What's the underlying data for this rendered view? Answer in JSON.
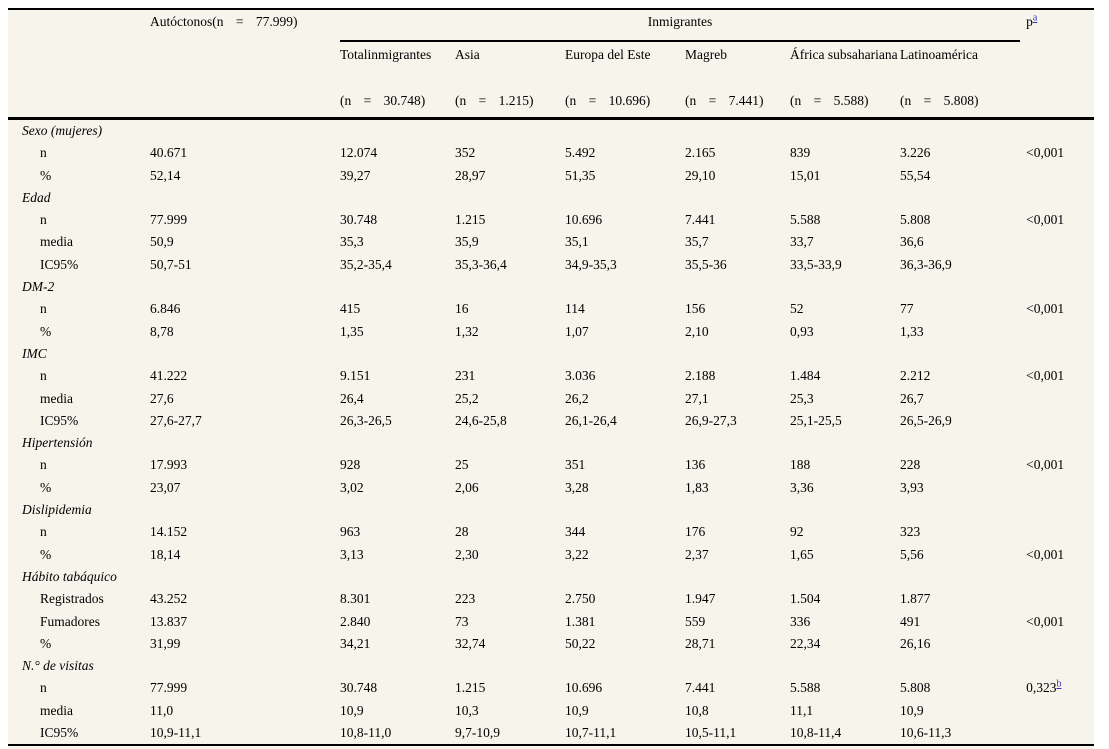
{
  "header": {
    "autoctonos_label": "Autóctonos(n = 77.999)",
    "inmigrantes_label": "Inmigrantes",
    "p_label": "p",
    "p_footnote": "a",
    "groups": [
      {
        "name": "Totalinmigrantes",
        "n": "(n = 30.748)"
      },
      {
        "name": "Asia",
        "n": "(n = 1.215)"
      },
      {
        "name": "Europa del Este",
        "n": "(n = 10.696)"
      },
      {
        "name": "Magreb",
        "n": "(n = 7.441)"
      },
      {
        "name": "África subsahariana",
        "n": "(n = 5.588)"
      },
      {
        "name": "Latinoamérica",
        "n": "(n = 5.808)"
      }
    ]
  },
  "sections": [
    {
      "label": "Sexo (mujeres)",
      "rows": [
        {
          "label": "n",
          "values": [
            "40.671",
            "12.074",
            "352",
            "5.492",
            "2.165",
            "839",
            "3.226"
          ],
          "p": "<0,001",
          "p_sup": ""
        },
        {
          "label": "%",
          "values": [
            "52,14",
            "39,27",
            "28,97",
            "51,35",
            "29,10",
            "15,01",
            "55,54"
          ],
          "p": "",
          "p_sup": ""
        }
      ]
    },
    {
      "label": "Edad",
      "rows": [
        {
          "label": "n",
          "values": [
            "77.999",
            "30.748",
            "1.215",
            "10.696",
            "7.441",
            "5.588",
            "5.808"
          ],
          "p": "<0,001",
          "p_sup": ""
        },
        {
          "label": "media",
          "values": [
            "50,9",
            "35,3",
            "35,9",
            "35,1",
            "35,7",
            "33,7",
            "36,6"
          ],
          "p": "",
          "p_sup": ""
        },
        {
          "label": "IC95%",
          "values": [
            "50,7-51",
            "35,2-35,4",
            "35,3-36,4",
            "34,9-35,3",
            "35,5-36",
            "33,5-33,9",
            "36,3-36,9"
          ],
          "p": "",
          "p_sup": ""
        }
      ]
    },
    {
      "label": "DM-2",
      "rows": [
        {
          "label": "n",
          "values": [
            "6.846",
            "415",
            "16",
            "114",
            "156",
            "52",
            "77"
          ],
          "p": "<0,001",
          "p_sup": ""
        },
        {
          "label": "%",
          "values": [
            "8,78",
            "1,35",
            "1,32",
            "1,07",
            "2,10",
            "0,93",
            "1,33"
          ],
          "p": "",
          "p_sup": ""
        }
      ]
    },
    {
      "label": "IMC",
      "rows": [
        {
          "label": "n",
          "values": [
            "41.222",
            "9.151",
            "231",
            "3.036",
            "2.188",
            "1.484",
            "2.212"
          ],
          "p": "<0,001",
          "p_sup": ""
        },
        {
          "label": "media",
          "values": [
            "27,6",
            "26,4",
            "25,2",
            "26,2",
            "27,1",
            "25,3",
            "26,7"
          ],
          "p": "",
          "p_sup": ""
        },
        {
          "label": "IC95%",
          "values": [
            "27,6-27,7",
            "26,3-26,5",
            "24,6-25,8",
            "26,1-26,4",
            "26,9-27,3",
            "25,1-25,5",
            "26,5-26,9"
          ],
          "p": "",
          "p_sup": ""
        }
      ]
    },
    {
      "label": "Hipertensión",
      "rows": [
        {
          "label": "n",
          "values": [
            "17.993",
            "928",
            "25",
            "351",
            "136",
            "188",
            "228"
          ],
          "p": "<0,001",
          "p_sup": ""
        },
        {
          "label": "%",
          "values": [
            "23,07",
            "3,02",
            "2,06",
            "3,28",
            "1,83",
            "3,36",
            "3,93"
          ],
          "p": "",
          "p_sup": ""
        }
      ]
    },
    {
      "label": "Dislipidemia",
      "rows": [
        {
          "label": "n",
          "values": [
            "14.152",
            "963",
            "28",
            "344",
            "176",
            "92",
            "323"
          ],
          "p": "",
          "p_sup": ""
        },
        {
          "label": "%",
          "values": [
            "18,14",
            "3,13",
            "2,30",
            "3,22",
            "2,37",
            "1,65",
            "5,56"
          ],
          "p": "<0,001",
          "p_sup": ""
        }
      ]
    },
    {
      "label": "Hábito tabáquico",
      "rows": [
        {
          "label": "Registrados",
          "values": [
            "43.252",
            "8.301",
            "223",
            "2.750",
            "1.947",
            "1.504",
            "1.877"
          ],
          "p": "",
          "p_sup": ""
        },
        {
          "label": "Fumadores",
          "values": [
            "13.837",
            "2.840",
            "73",
            "1.381",
            "559",
            "336",
            "491"
          ],
          "p": "<0,001",
          "p_sup": ""
        },
        {
          "label": "%",
          "values": [
            "31,99",
            "34,21",
            "32,74",
            "50,22",
            "28,71",
            "22,34",
            "26,16"
          ],
          "p": "",
          "p_sup": ""
        }
      ]
    },
    {
      "label": "N.° de visitas",
      "rows": [
        {
          "label": "n",
          "values": [
            "77.999",
            "30.748",
            "1.215",
            "10.696",
            "7.441",
            "5.588",
            "5.808"
          ],
          "p": "0,323",
          "p_sup": "b"
        },
        {
          "label": "media",
          "values": [
            "11,0",
            "10,9",
            "10,3",
            "10,9",
            "10,8",
            "11,1",
            "10,9"
          ],
          "p": "",
          "p_sup": ""
        },
        {
          "label": "IC95%",
          "values": [
            "10,9-11,1",
            "10,8-11,0",
            "9,7-10,9",
            "10,7-11,1",
            "10,5-11,1",
            "10,8-11,4",
            "10,6-11,3"
          ],
          "p": "",
          "p_sup": ""
        }
      ]
    }
  ],
  "colors": {
    "table_background": "#f7f4ec",
    "footnote_link": "#3333bb",
    "rule": "#000000"
  }
}
